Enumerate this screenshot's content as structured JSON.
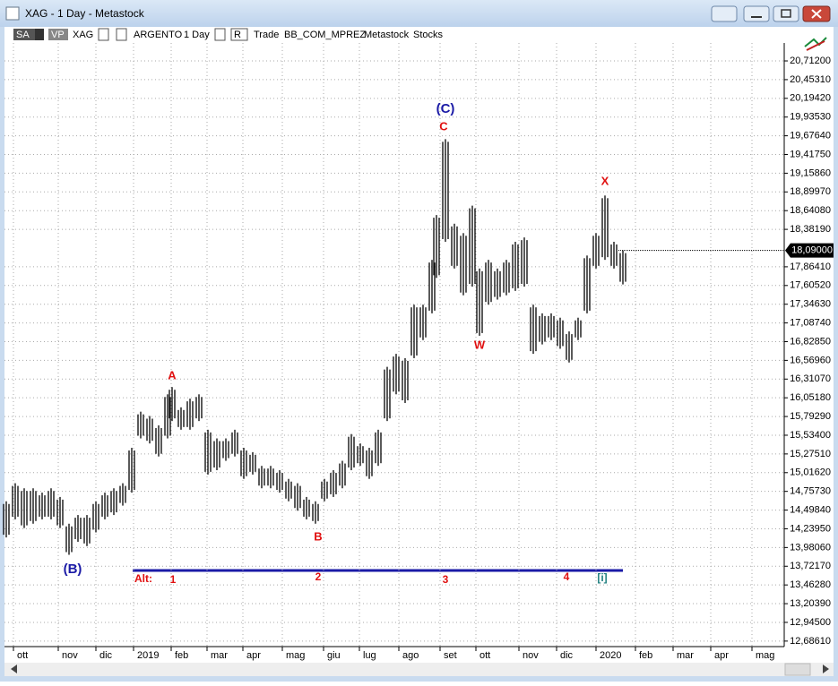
{
  "window": {
    "title": "XAG - 1 Day - Metastock",
    "toolbar": [
      "SA",
      "VP",
      "XAG",
      "ARGENTO",
      "1 Day",
      "R",
      "Trade",
      "BB_COM_MPREZ",
      "Metastock",
      "Stocks"
    ]
  },
  "chart_data": {
    "type": "ohlc",
    "color": "#000000",
    "grid": true,
    "x": [
      1,
      6,
      11,
      16,
      21,
      26,
      31,
      36,
      41,
      46,
      51,
      56,
      61,
      66,
      71,
      76,
      81,
      86,
      91,
      93.5,
      98.5,
      103.5,
      108.5,
      113.5,
      118.5,
      123.5,
      128.5,
      133.5,
      138.5,
      143.5,
      148.5,
      153.5,
      158.5,
      163.5,
      168.5,
      173.5,
      178.5,
      183.5,
      188.5,
      193.5,
      198.5,
      203.5,
      208.5,
      213.5,
      218.5,
      223.5,
      228.5,
      233.5,
      238.5,
      241,
      246,
      251,
      256,
      261,
      265,
      270,
      275,
      280,
      285,
      290,
      295,
      300,
      305,
      310,
      315,
      320,
      325,
      330,
      335,
      340,
      345
    ],
    "high": [
      14.62,
      14.87,
      14.8,
      14.8,
      14.74,
      14.8,
      14.68,
      14.31,
      14.43,
      14.43,
      14.62,
      14.74,
      14.8,
      14.87,
      15.36,
      15.86,
      15.8,
      15.67,
      16.1,
      16.2,
      15.92,
      16.04,
      16.1,
      15.61,
      15.49,
      15.49,
      15.61,
      15.36,
      15.3,
      15.11,
      15.11,
      15.05,
      14.93,
      14.87,
      14.68,
      14.62,
      14.93,
      15.05,
      15.18,
      15.55,
      15.42,
      15.36,
      15.61,
      16.48,
      16.66,
      16.6,
      17.34,
      17.34,
      17.96,
      18.58,
      19.63,
      18.46,
      18.33,
      18.71,
      17.84,
      17.96,
      17.84,
      17.96,
      18.21,
      18.27,
      17.34,
      17.22,
      17.22,
      17.16,
      16.97,
      17.16,
      18.02,
      18.33,
      18.85,
      18.21,
      18.09
    ],
    "low": [
      14.12,
      14.37,
      14.25,
      14.31,
      14.37,
      14.37,
      14.25,
      13.88,
      14.06,
      14.0,
      14.19,
      14.37,
      14.43,
      14.56,
      14.74,
      15.49,
      15.42,
      15.24,
      15.49,
      15.73,
      15.61,
      15.61,
      15.73,
      14.99,
      15.05,
      15.18,
      15.24,
      14.93,
      14.99,
      14.8,
      14.8,
      14.74,
      14.62,
      14.49,
      14.37,
      14.31,
      14.62,
      14.68,
      14.8,
      15.05,
      15.11,
      14.93,
      15.11,
      15.73,
      16.1,
      15.98,
      16.6,
      16.85,
      17.22,
      17.71,
      18.21,
      17.84,
      17.47,
      17.59,
      16.91,
      17.34,
      17.41,
      17.47,
      17.53,
      17.59,
      16.66,
      16.79,
      16.85,
      16.73,
      16.54,
      16.85,
      17.22,
      17.84,
      17.96,
      17.84,
      17.62
    ],
    "xlim": [
      0,
      435
    ],
    "xticks": [
      {
        "value": 5,
        "label": "ott"
      },
      {
        "value": 30,
        "label": "nov"
      },
      {
        "value": 51,
        "label": "dic"
      },
      {
        "value": 72,
        "label": "2019"
      },
      {
        "value": 93,
        "label": "feb"
      },
      {
        "value": 113,
        "label": "mar"
      },
      {
        "value": 133,
        "label": "apr"
      },
      {
        "value": 155,
        "label": "mag"
      },
      {
        "value": 178,
        "label": "giu"
      },
      {
        "value": 198,
        "label": "lug"
      },
      {
        "value": 220,
        "label": "ago"
      },
      {
        "value": 243,
        "label": "set"
      },
      {
        "value": 263,
        "label": "ott"
      },
      {
        "value": 287,
        "label": "nov"
      },
      {
        "value": 308,
        "label": "dic"
      },
      {
        "value": 330,
        "label": "2020"
      },
      {
        "value": 352,
        "label": "feb"
      },
      {
        "value": 373,
        "label": "mar"
      },
      {
        "value": 394,
        "label": "apr"
      },
      {
        "value": 417,
        "label": "mag"
      }
    ],
    "ylim": [
      12.61,
      20.96
    ],
    "yticks": [
      {
        "value": 20.712,
        "label": "20,71200"
      },
      {
        "value": 20.4531,
        "label": "20,45310"
      },
      {
        "value": 20.1942,
        "label": "20,19420"
      },
      {
        "value": 19.9353,
        "label": "19,93530"
      },
      {
        "value": 19.6764,
        "label": "19,67640"
      },
      {
        "value": 19.4175,
        "label": "19,41750"
      },
      {
        "value": 19.1586,
        "label": "19,15860"
      },
      {
        "value": 18.8997,
        "label": "18,89970"
      },
      {
        "value": 18.6408,
        "label": "18,64080"
      },
      {
        "value": 18.3819,
        "label": "18,38190"
      },
      {
        "value": 17.8641,
        "label": "17,86410"
      },
      {
        "value": 17.6052,
        "label": "17,60520"
      },
      {
        "value": 17.3463,
        "label": "17,34630"
      },
      {
        "value": 17.0874,
        "label": "17,08740"
      },
      {
        "value": 16.8285,
        "label": "16,82850"
      },
      {
        "value": 16.5696,
        "label": "16,56960"
      },
      {
        "value": 16.3107,
        "label": "16,31070"
      },
      {
        "value": 16.0518,
        "label": "16,05180"
      },
      {
        "value": 15.7929,
        "label": "15,79290"
      },
      {
        "value": 15.534,
        "label": "15,53400"
      },
      {
        "value": 15.2751,
        "label": "15,27510"
      },
      {
        "value": 15.0162,
        "label": "15,01620"
      },
      {
        "value": 14.7573,
        "label": "14,75730"
      },
      {
        "value": 14.4984,
        "label": "14,49840"
      },
      {
        "value": 14.2395,
        "label": "14,23950"
      },
      {
        "value": 13.9806,
        "label": "13,98060"
      },
      {
        "value": 13.7217,
        "label": "13,72170"
      },
      {
        "value": 13.4628,
        "label": "13,46280"
      },
      {
        "value": 13.2039,
        "label": "13,20390"
      },
      {
        "value": 12.945,
        "label": "12,94500"
      },
      {
        "value": 12.6861,
        "label": "12,68610"
      }
    ],
    "last_price": {
      "value": 18.09,
      "label": "18,09000"
    },
    "annotations": [
      {
        "text": "(C)",
        "color": "#1a1aa6"
      },
      {
        "text": "C",
        "color": "#e01010"
      },
      {
        "text": "A",
        "color": "#e01010"
      },
      {
        "text": "B",
        "color": "#e01010"
      },
      {
        "text": "W",
        "color": "#e01010"
      },
      {
        "text": "X",
        "color": "#e01010"
      },
      {
        "text": "(B)",
        "color": "#1a1aa6"
      },
      {
        "text": "Alt:",
        "color": "#e01010"
      },
      {
        "text": "1",
        "color": "#e01010"
      },
      {
        "text": "2",
        "color": "#e01010"
      },
      {
        "text": "3",
        "color": "#e01010"
      },
      {
        "text": "4",
        "color": "#e01010"
      },
      {
        "text": "[i]",
        "color": "#208080"
      }
    ]
  }
}
